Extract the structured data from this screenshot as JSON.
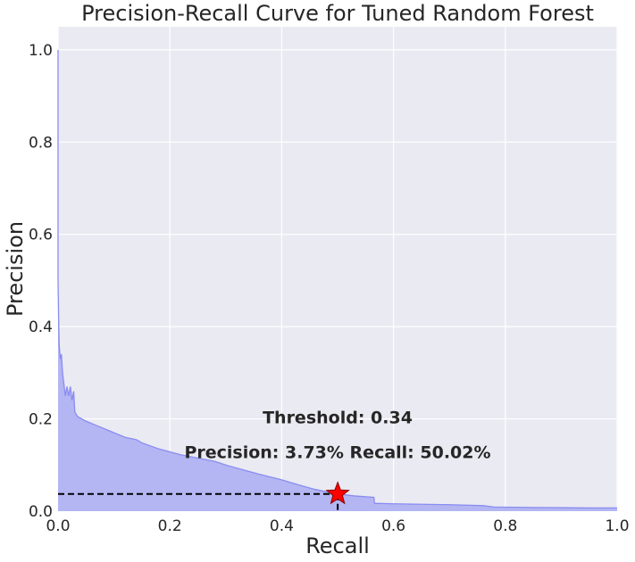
{
  "chart_data": {
    "type": "area",
    "title": "Precision-Recall Curve for Tuned Random Forest",
    "xlabel": "Recall",
    "ylabel": "Precision",
    "xlim": [
      0.0,
      1.0
    ],
    "ylim": [
      0.0,
      1.05
    ],
    "x_ticks": [
      "0.0",
      "0.2",
      "0.4",
      "0.6",
      "0.8",
      "1.0"
    ],
    "y_ticks": [
      "0.0",
      "0.2",
      "0.4",
      "0.6",
      "0.8",
      "1.0"
    ],
    "grid": true,
    "series": [
      {
        "points": [
          [
            0.0,
            1.0
          ],
          [
            0.0,
            0.5
          ],
          [
            0.001,
            0.42
          ],
          [
            0.002,
            0.36
          ],
          [
            0.004,
            0.33
          ],
          [
            0.006,
            0.34
          ],
          [
            0.008,
            0.3
          ],
          [
            0.01,
            0.28
          ],
          [
            0.013,
            0.25
          ],
          [
            0.016,
            0.27
          ],
          [
            0.019,
            0.25
          ],
          [
            0.022,
            0.27
          ],
          [
            0.025,
            0.24
          ],
          [
            0.028,
            0.26
          ],
          [
            0.03,
            0.215
          ],
          [
            0.035,
            0.205
          ],
          [
            0.05,
            0.195
          ],
          [
            0.07,
            0.185
          ],
          [
            0.09,
            0.175
          ],
          [
            0.12,
            0.16
          ],
          [
            0.14,
            0.155
          ],
          [
            0.15,
            0.148
          ],
          [
            0.18,
            0.135
          ],
          [
            0.22,
            0.122
          ],
          [
            0.25,
            0.115
          ],
          [
            0.28,
            0.108
          ],
          [
            0.3,
            0.1
          ],
          [
            0.33,
            0.09
          ],
          [
            0.36,
            0.08
          ],
          [
            0.4,
            0.068
          ],
          [
            0.43,
            0.057
          ],
          [
            0.46,
            0.047
          ],
          [
            0.5,
            0.0373
          ],
          [
            0.53,
            0.033
          ],
          [
            0.565,
            0.03
          ],
          [
            0.566,
            0.017
          ],
          [
            0.6,
            0.016
          ],
          [
            0.7,
            0.014
          ],
          [
            0.76,
            0.012
          ],
          [
            0.78,
            0.009
          ],
          [
            0.85,
            0.008
          ],
          [
            0.95,
            0.007
          ],
          [
            1.0,
            0.007
          ]
        ]
      }
    ],
    "highlight_point": {
      "x": 0.5002,
      "y": 0.0373,
      "marker": "star"
    },
    "annotations": {
      "threshold": "Threshold: 0.34",
      "metrics": "Precision: 3.73% Recall: 50.02%"
    },
    "colors": {
      "fill": "#b3b6f2",
      "line": "#8a8cf0",
      "background": "#eaeaf2",
      "grid": "#ffffff",
      "star_fill": "#ff0000",
      "star_edge": "#8b0000",
      "dashed": "#000000"
    }
  }
}
